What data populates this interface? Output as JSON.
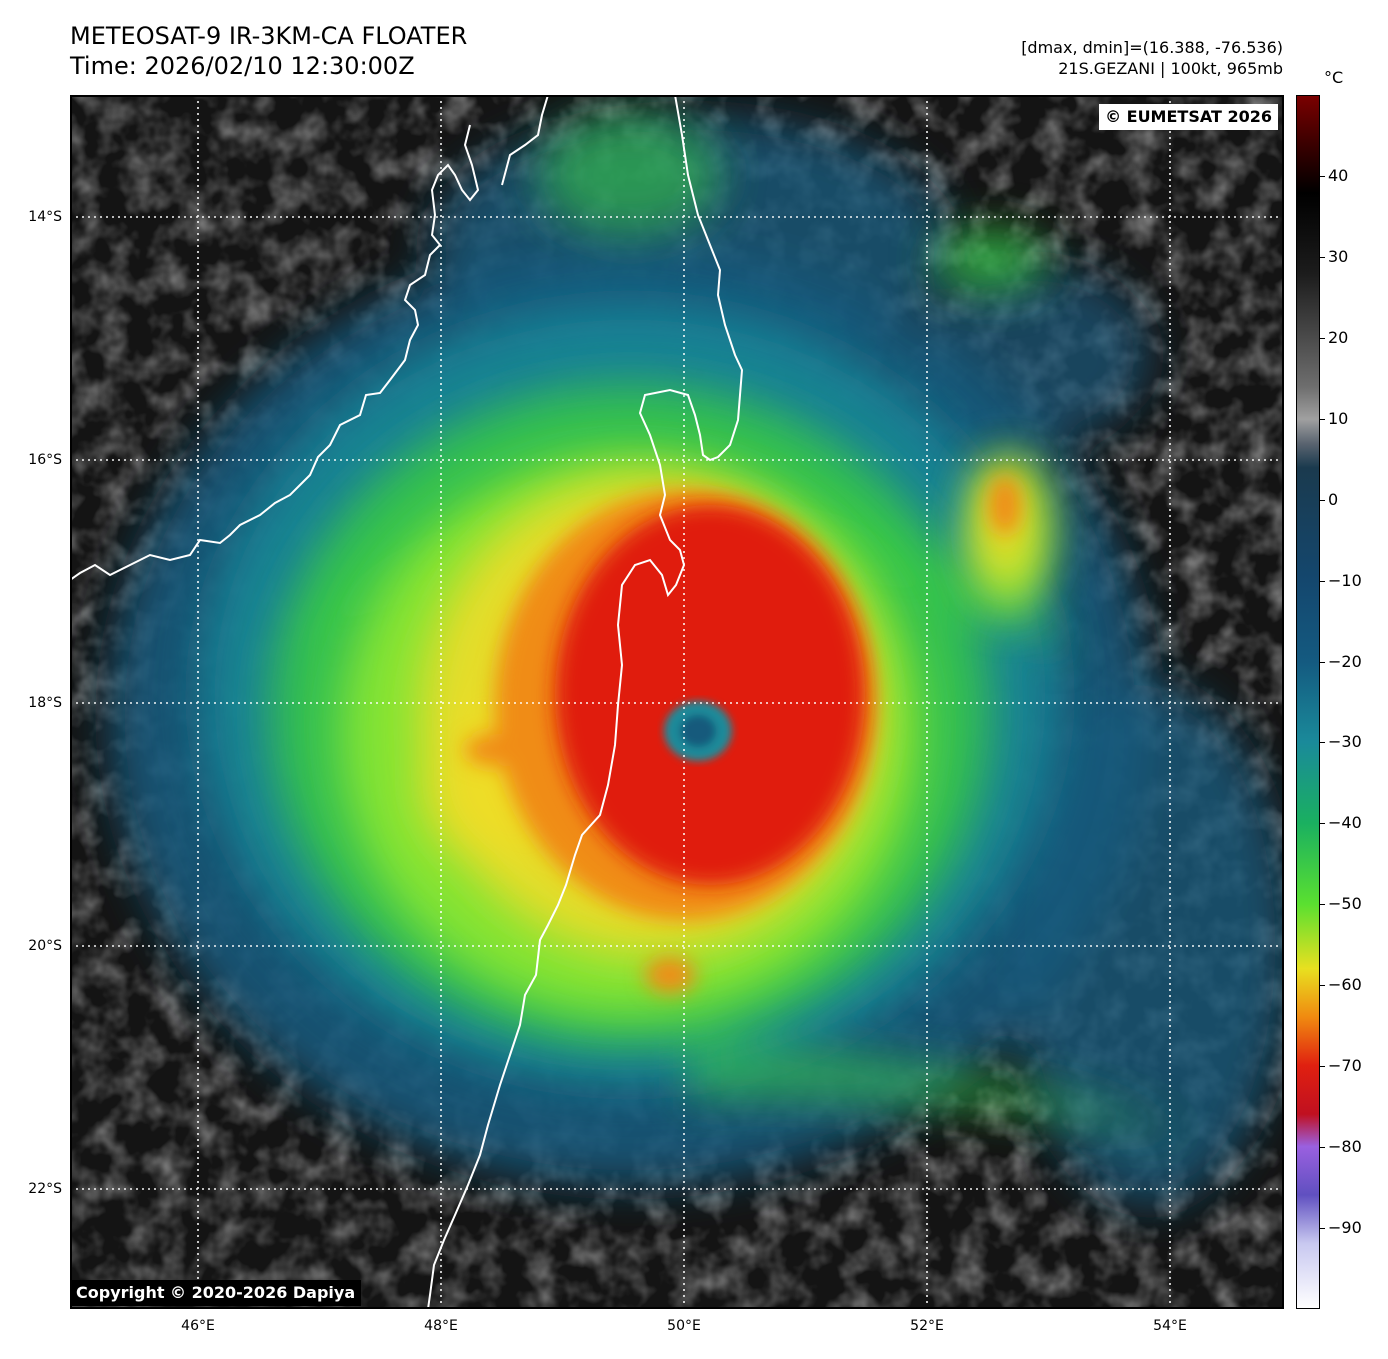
{
  "header": {
    "title_line1": "METEOSAT-9 IR-3KM-CA FLOATER",
    "title_line2": "Time: 2026/02/10 12:30:00Z",
    "info_line1": "[dmax, dmin]=(16.388, -76.536)",
    "info_line2": "21S.GEZANI | 100kt, 965mb"
  },
  "badges": {
    "eumetsat": "© EUMETSAT 2026",
    "copyright": "Copyright © 2020-2026 Dapiya"
  },
  "axes": {
    "lat_labels": [
      "14°S",
      "16°S",
      "18°S",
      "20°S",
      "22°S"
    ],
    "lon_labels": [
      "46°E",
      "48°E",
      "50°E",
      "52°E",
      "54°E"
    ]
  },
  "colorbar": {
    "unit": "°C",
    "range": [
      -100,
      50
    ],
    "ticks": [
      "40",
      "30",
      "20",
      "10",
      "0",
      "−10",
      "−20",
      "−30",
      "−40",
      "−50",
      "−60",
      "−70",
      "−80",
      "−90"
    ],
    "stops": [
      {
        "value": 50,
        "color": "#7a0000"
      },
      {
        "value": 44,
        "color": "#3a0000"
      },
      {
        "value": 38,
        "color": "#000000"
      },
      {
        "value": 28,
        "color": "#1c1c1c"
      },
      {
        "value": 14,
        "color": "#6e6e6e"
      },
      {
        "value": 10,
        "color": "#a0a0a0"
      },
      {
        "value": 7,
        "color": "#5a6470"
      },
      {
        "value": 4,
        "color": "#1a3a4e"
      },
      {
        "value": -10,
        "color": "#14476e"
      },
      {
        "value": -20,
        "color": "#145a80"
      },
      {
        "value": -30,
        "color": "#1a8a9a"
      },
      {
        "value": -40,
        "color": "#1ab060"
      },
      {
        "value": -50,
        "color": "#5ae030"
      },
      {
        "value": -58,
        "color": "#e8e020"
      },
      {
        "value": -64,
        "color": "#f08a10"
      },
      {
        "value": -70,
        "color": "#e02010"
      },
      {
        "value": -76,
        "color": "#c01020"
      },
      {
        "value": -80,
        "color": "#9a60e0"
      },
      {
        "value": -86,
        "color": "#6050c0"
      },
      {
        "value": -92,
        "color": "#c8c8f0"
      },
      {
        "value": -100,
        "color": "#ffffff"
      }
    ]
  },
  "colors": {
    "background_dark": "#141414",
    "cloud_gray": "#5a5a5a",
    "cold_blue": "#175a7c",
    "teal": "#1a8a9a",
    "green": "#38c848",
    "lime": "#8ee830",
    "yellow": "#f0dc28",
    "orange": "#f08c18",
    "red": "#e01e10",
    "coastline": "#ffffff",
    "gridline": "#ffffff"
  }
}
